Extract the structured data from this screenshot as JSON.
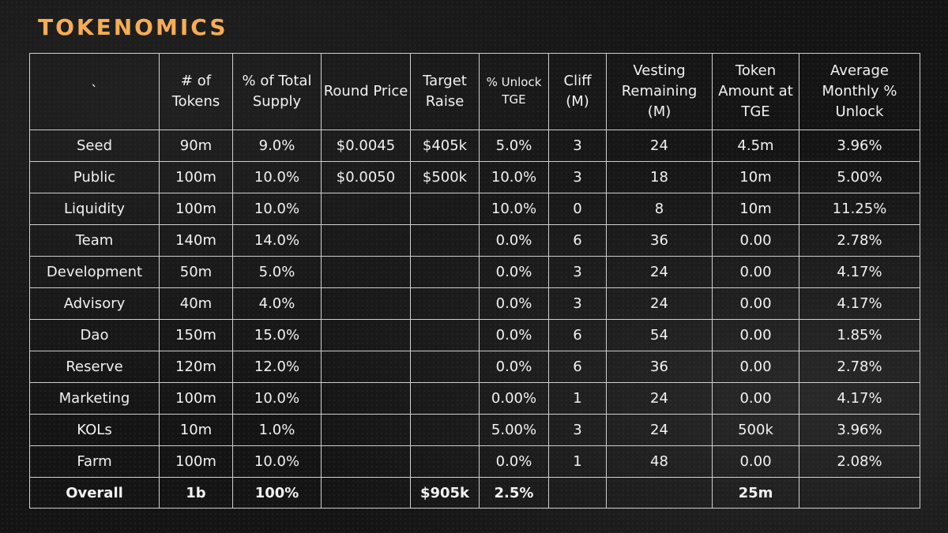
{
  "title": "TOKENOMICS",
  "headers": {
    "allocation": "`",
    "tokens": "# of Tokens",
    "supply": "% of Total Supply",
    "price": "Round Price",
    "raise": "Target Raise",
    "unlock_tge": "% Unlock TGE",
    "cliff": "Cliff (M)",
    "vesting": "Vesting Remaining (M)",
    "amount_tge": "Token Amount at TGE",
    "monthly": "Average Monthly % Unlock"
  },
  "rows": [
    {
      "name": "Seed",
      "tokens": "90m",
      "supply": "9.0%",
      "price": "$0.0045",
      "raise": "$405k",
      "unlock": "5.0%",
      "cliff": "3",
      "vesting": "24",
      "amount": "4.5m",
      "monthly": "3.96%"
    },
    {
      "name": "Public",
      "tokens": "100m",
      "supply": "10.0%",
      "price": "$0.0050",
      "raise": "$500k",
      "unlock": "10.0%",
      "cliff": "3",
      "vesting": "18",
      "amount": "10m",
      "monthly": "5.00%"
    },
    {
      "name": "Liquidity",
      "tokens": "100m",
      "supply": "10.0%",
      "price": "",
      "raise": "",
      "unlock": "10.0%",
      "cliff": "0",
      "vesting": "8",
      "amount": "10m",
      "monthly": "11.25%"
    },
    {
      "name": "Team",
      "tokens": "140m",
      "supply": "14.0%",
      "price": "",
      "raise": "",
      "unlock": "0.0%",
      "cliff": "6",
      "vesting": "36",
      "amount": "0.00",
      "monthly": "2.78%"
    },
    {
      "name": "Development",
      "tokens": "50m",
      "supply": "5.0%",
      "price": "",
      "raise": "",
      "unlock": "0.0%",
      "cliff": "3",
      "vesting": "24",
      "amount": "0.00",
      "monthly": "4.17%"
    },
    {
      "name": "Advisory",
      "tokens": "40m",
      "supply": "4.0%",
      "price": "",
      "raise": "",
      "unlock": "0.0%",
      "cliff": "3",
      "vesting": "24",
      "amount": "0.00",
      "monthly": "4.17%"
    },
    {
      "name": "Dao",
      "tokens": "150m",
      "supply": "15.0%",
      "price": "",
      "raise": "",
      "unlock": "0.0%",
      "cliff": "6",
      "vesting": "54",
      "amount": "0.00",
      "monthly": "1.85%"
    },
    {
      "name": "Reserve",
      "tokens": "120m",
      "supply": "12.0%",
      "price": "",
      "raise": "",
      "unlock": "0.0%",
      "cliff": "6",
      "vesting": "36",
      "amount": "0.00",
      "monthly": "2.78%"
    },
    {
      "name": "Marketing",
      "tokens": "100m",
      "supply": "10.0%",
      "price": "",
      "raise": "",
      "unlock": "0.00%",
      "cliff": "1",
      "vesting": "24",
      "amount": "0.00",
      "monthly": "4.17%"
    },
    {
      "name": "KOLs",
      "tokens": "10m",
      "supply": "1.0%",
      "price": "",
      "raise": "",
      "unlock": "5.00%",
      "cliff": "3",
      "vesting": "24",
      "amount": "500k",
      "monthly": "3.96%"
    },
    {
      "name": "Farm",
      "tokens": "100m",
      "supply": "10.0%",
      "price": "",
      "raise": "",
      "unlock": "0.0%",
      "cliff": "1",
      "vesting": "48",
      "amount": "0.00",
      "monthly": "2.08%"
    }
  ],
  "overall": {
    "name": "Overall",
    "tokens": "1b",
    "supply": "100%",
    "price": "",
    "raise": "$905k",
    "unlock": "2.5%",
    "cliff": "",
    "vesting": "",
    "amount": "25m",
    "monthly": ""
  }
}
